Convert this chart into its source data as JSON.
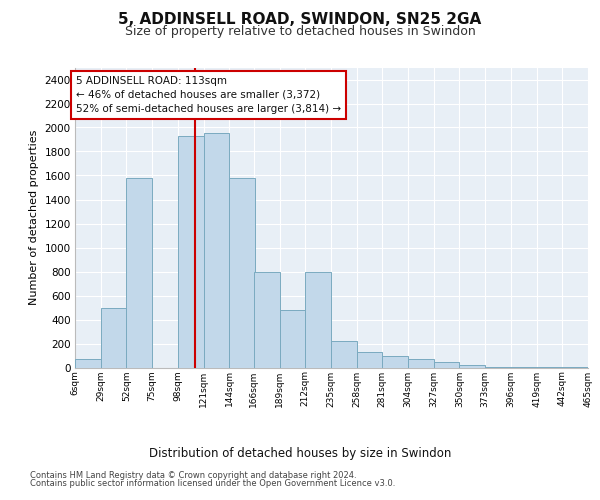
{
  "title1": "5, ADDINSELL ROAD, SWINDON, SN25 2GA",
  "title2": "Size of property relative to detached houses in Swindon",
  "xlabel": "Distribution of detached houses by size in Swindon",
  "ylabel": "Number of detached properties",
  "footer1": "Contains HM Land Registry data © Crown copyright and database right 2024.",
  "footer2": "Contains public sector information licensed under the Open Government Licence v3.0.",
  "bar_color": "#C2D8EA",
  "bar_edge_color": "#7AAAC0",
  "background_color": "#E8EFF6",
  "annotation_line1": "5 ADDINSELL ROAD: 113sqm",
  "annotation_line2": "← 46% of detached houses are smaller (3,372)",
  "annotation_line3": "52% of semi-detached houses are larger (3,814) →",
  "red_line_x": 113,
  "bin_edges": [
    6,
    29,
    52,
    75,
    98,
    121,
    144,
    166,
    189,
    212,
    235,
    258,
    281,
    304,
    327,
    350,
    373,
    396,
    419,
    442,
    465
  ],
  "bar_heights": [
    75,
    500,
    1580,
    0,
    1930,
    1950,
    1575,
    800,
    480,
    800,
    220,
    130,
    95,
    75,
    50,
    20,
    8,
    4,
    2,
    1
  ],
  "ylim": [
    0,
    2500
  ],
  "yticks": [
    0,
    200,
    400,
    600,
    800,
    1000,
    1200,
    1400,
    1600,
    1800,
    2000,
    2200,
    2400
  ],
  "tick_labels": [
    "6sqm",
    "29sqm",
    "52sqm",
    "75sqm",
    "98sqm",
    "121sqm",
    "144sqm",
    "166sqm",
    "189sqm",
    "212sqm",
    "235sqm",
    "258sqm",
    "281sqm",
    "304sqm",
    "327sqm",
    "350sqm",
    "373sqm",
    "396sqm",
    "419sqm",
    "442sqm",
    "465sqm"
  ]
}
